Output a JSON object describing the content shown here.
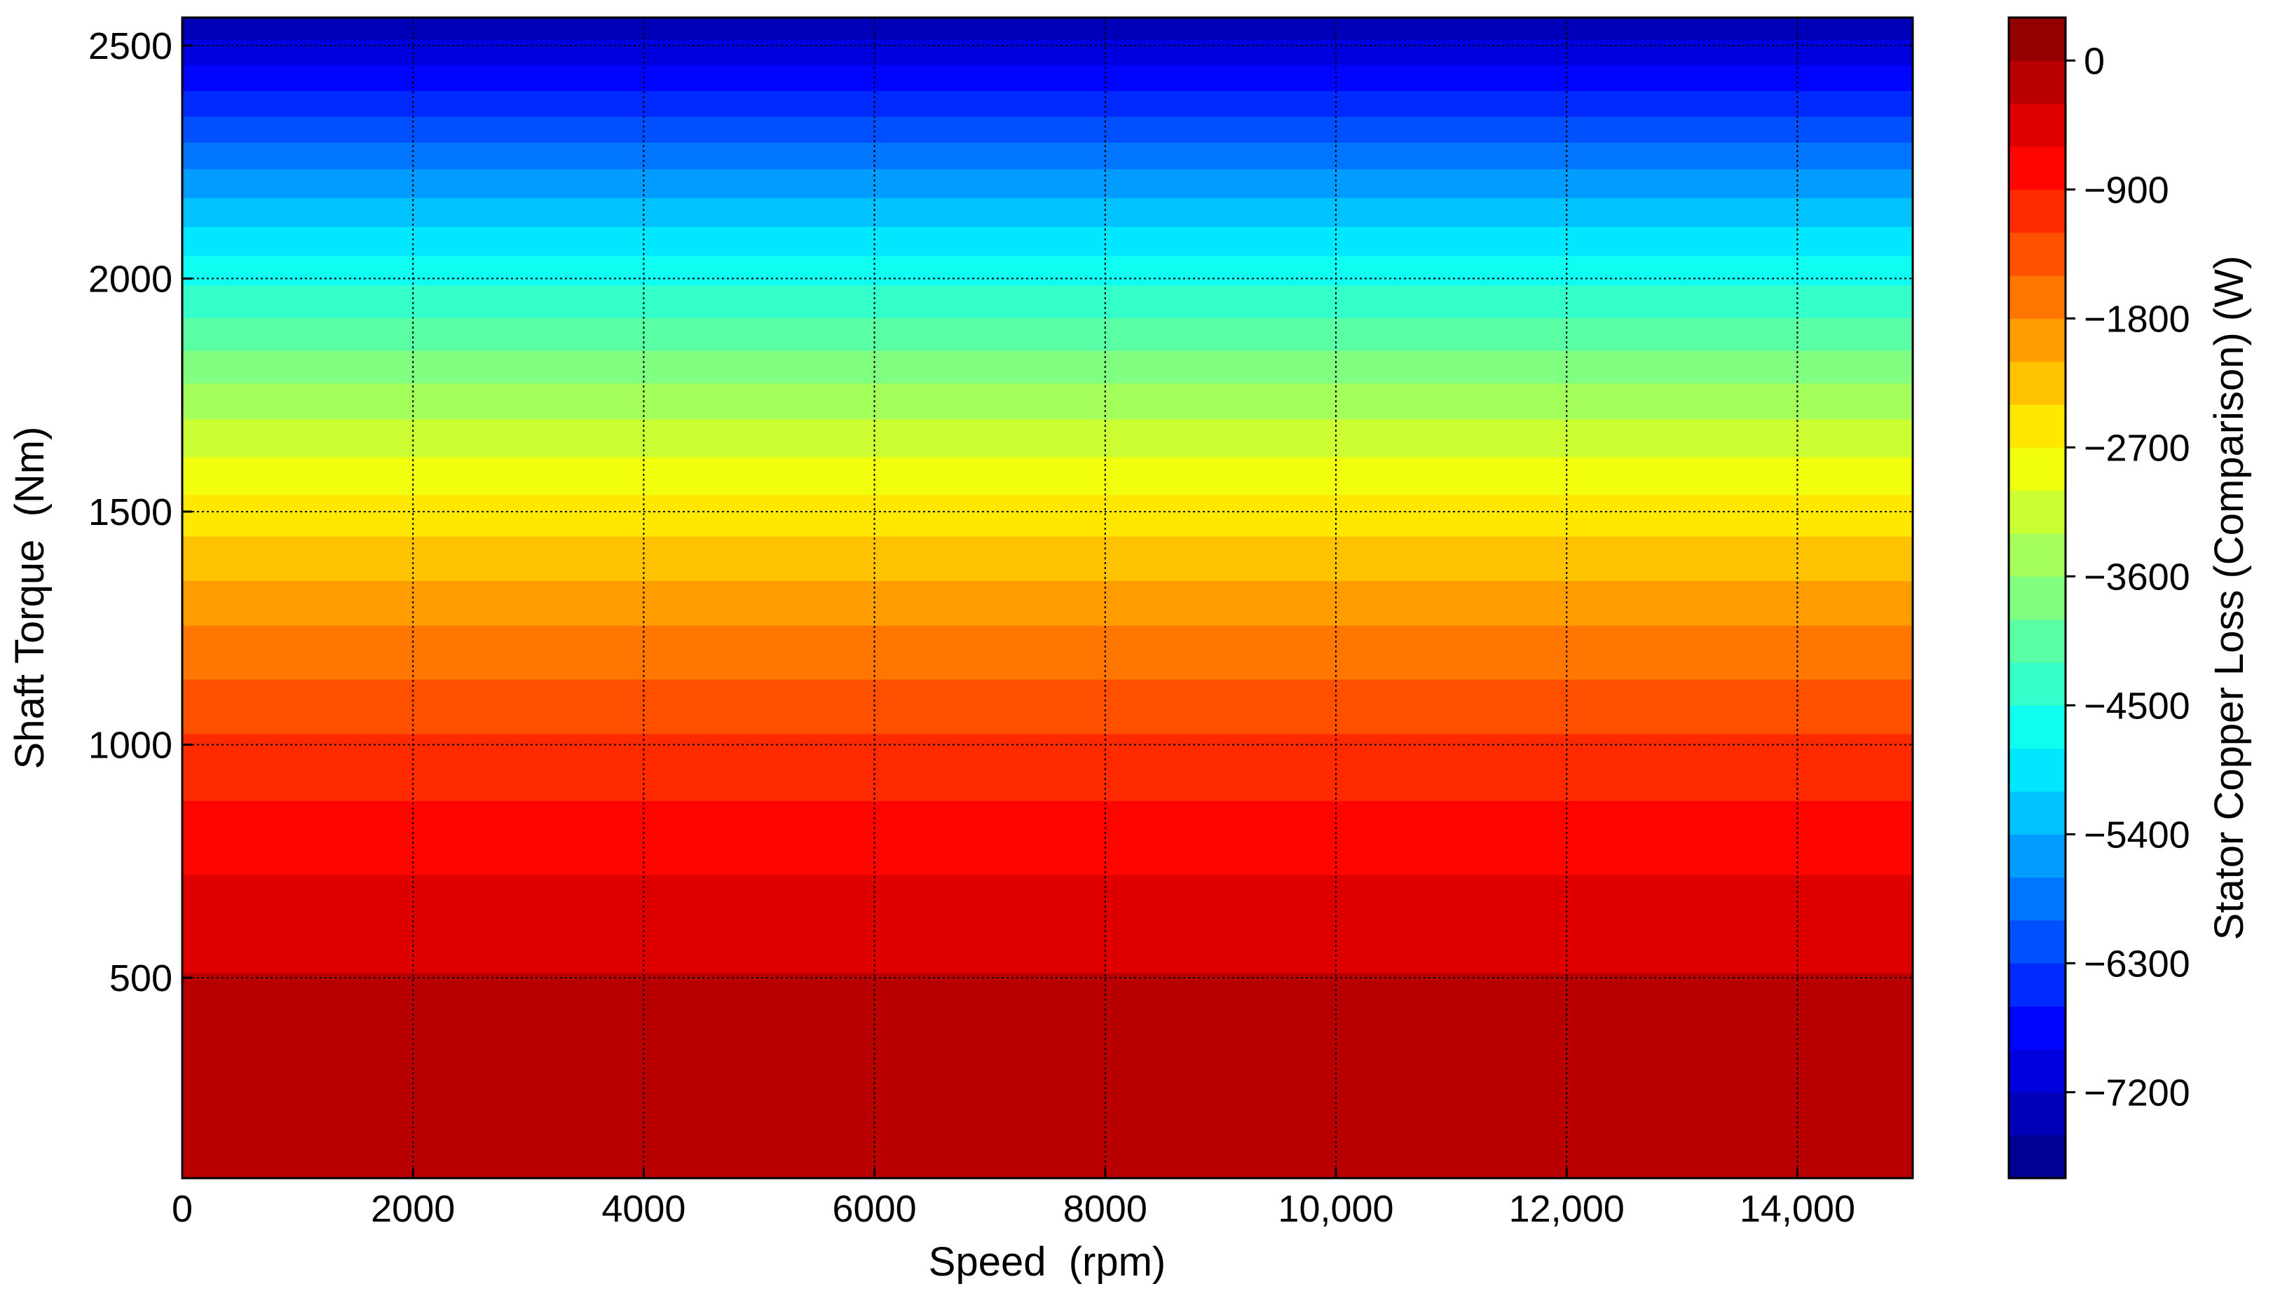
{
  "chart_data": {
    "type": "contourf",
    "x_label": "Speed  (rpm)",
    "y_label": "Shaft Torque  (Nm)",
    "colorbar_label": "Stator Copper Loss (Comparison) (W)",
    "colormap": "jet",
    "x": [
      0,
      15000
    ],
    "y": [
      70,
      250,
      500,
      750,
      1000,
      1250,
      1500,
      1750,
      2000,
      2250,
      2500,
      2560
    ],
    "z": [
      [
        -6,
        -6
      ],
      [
        -71,
        -71
      ],
      [
        -285,
        -285
      ],
      [
        -641,
        -641
      ],
      [
        -1140,
        -1140
      ],
      [
        -1781,
        -1781
      ],
      [
        -2565,
        -2565
      ],
      [
        -3491,
        -3491
      ],
      [
        -4560,
        -4560
      ],
      [
        -5771,
        -5771
      ],
      [
        -7125,
        -7125
      ],
      [
        -7471,
        -7471
      ]
    ],
    "levels": [
      -7800,
      -7500,
      -7200,
      -6900,
      -6600,
      -6300,
      -6000,
      -5700,
      -5400,
      -5100,
      -4800,
      -4500,
      -4200,
      -3900,
      -3600,
      -3300,
      -3000,
      -2700,
      -2400,
      -2100,
      -1800,
      -1500,
      -1200,
      -900,
      -600,
      -300,
      0,
      300
    ],
    "xlim": [
      0,
      15000
    ],
    "ylim": [
      70,
      2560
    ],
    "zlim": [
      -7800,
      300
    ],
    "xticks": [
      0,
      2000,
      4000,
      6000,
      8000,
      {
        "value": 10000,
        "label": "10,000"
      },
      {
        "value": 12000,
        "label": "12,000"
      },
      {
        "value": 14000,
        "label": "14,000"
      }
    ],
    "yticks": [
      500,
      1000,
      1500,
      2000,
      2500
    ],
    "zticks": [
      0,
      {
        "value": -900,
        "label": "−900"
      },
      {
        "value": -1800,
        "label": "−1800"
      },
      {
        "value": -2700,
        "label": "−2700"
      },
      {
        "value": -3600,
        "label": "−3600"
      },
      {
        "value": -4500,
        "label": "−4500"
      },
      {
        "value": -5400,
        "label": "−5400"
      },
      {
        "value": -6300,
        "label": "−6300"
      },
      {
        "value": -7200,
        "label": "−7200"
      }
    ],
    "grid": true
  }
}
